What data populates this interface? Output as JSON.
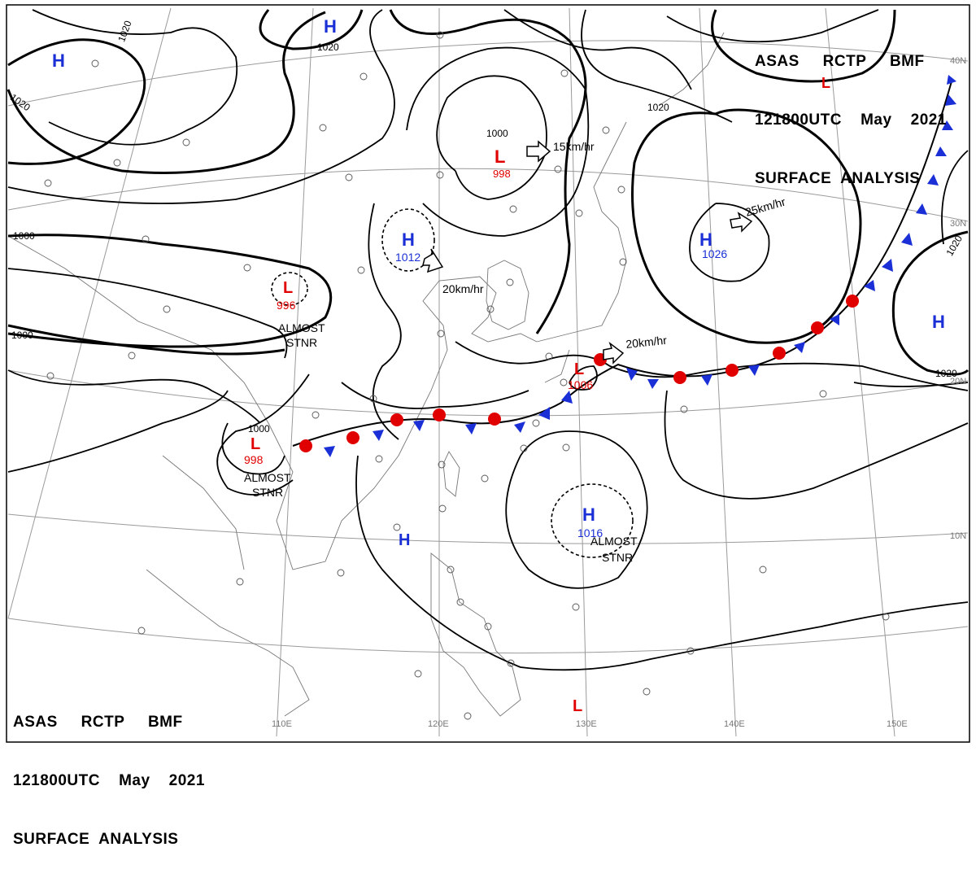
{
  "header_top": {
    "line1": "ASAS     RCTP     BMF",
    "line2": "121800UTC    May    2021",
    "line3": "SURFACE  ANALYSIS"
  },
  "header_bottom": {
    "line1": "ASAS     RCTP     BMF",
    "line2": "121800UTC    May    2021",
    "line3": "SURFACE  ANALYSIS"
  },
  "lat_labels": [
    "40N",
    "30N",
    "20N",
    "10N"
  ],
  "lon_labels": [
    "110E",
    "120E",
    "130E",
    "140E",
    "150E"
  ],
  "isobar_labels": [
    "1020",
    "1020",
    "1020",
    "1000",
    "1000",
    "1000",
    "1000",
    "1020",
    "1020",
    "1020",
    "1000"
  ],
  "pressure_centers": [
    {
      "type": "H",
      "value": ""
    },
    {
      "type": "H",
      "value": ""
    },
    {
      "type": "L",
      "value": "998"
    },
    {
      "type": "H",
      "value": "1012"
    },
    {
      "type": "L",
      "value": "996"
    },
    {
      "type": "H",
      "value": "1026"
    },
    {
      "type": "L",
      "value": ""
    },
    {
      "type": "H",
      "value": ""
    },
    {
      "type": "L",
      "value": "1006"
    },
    {
      "type": "L",
      "value": "998"
    },
    {
      "type": "H",
      "value": "1016"
    },
    {
      "type": "H",
      "value": ""
    },
    {
      "type": "L",
      "value": ""
    }
  ],
  "motions": [
    "15km/hr",
    "25km/hr",
    "20km/hr",
    "20km/hr"
  ],
  "notes": [
    "ALMOST",
    "STNR",
    "ALMOST",
    "STNR",
    "ALMOST",
    "STNR"
  ],
  "colors": {
    "high": "#1a2fd6",
    "low": "#e00000",
    "isobar": "#000000",
    "grid": "#9a9a9a",
    "coast": "#777777",
    "warm_front": "#e00000",
    "cold_front": "#1a2fd6"
  }
}
